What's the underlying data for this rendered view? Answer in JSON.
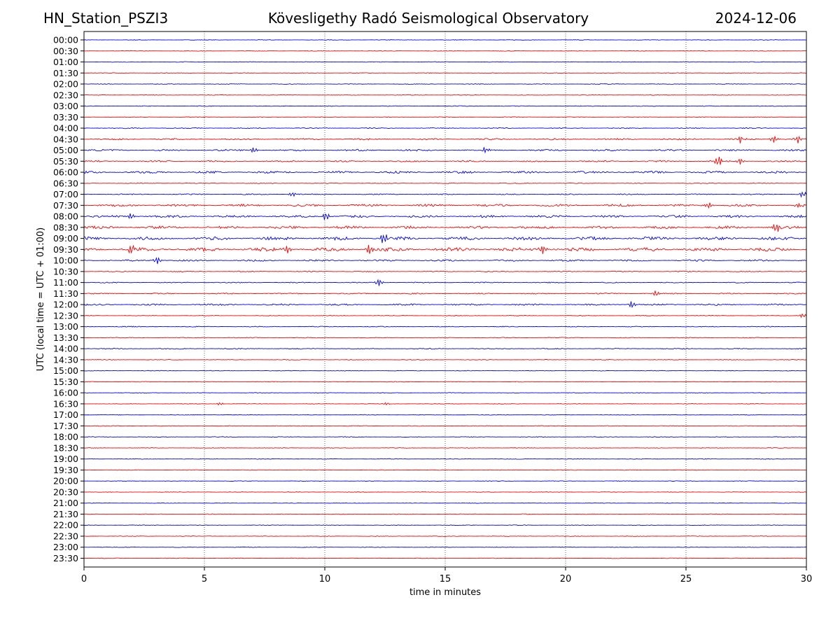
{
  "header": {
    "station": "HN_Station_PSZI3",
    "observatory": "Kövesligethy Radó Seismological Observatory",
    "date": "2024-12-06"
  },
  "chart_data": {
    "type": "line",
    "title": "Kövesligethy Radó Seismological Observatory",
    "xlabel": "time in minutes",
    "ylabel": "UTC (local time = UTC + 01:00)",
    "xlim": [
      0,
      30
    ],
    "x_ticks": [
      0,
      5,
      10,
      15,
      20,
      25,
      30
    ],
    "grid": "vertical dotted at every 5 minutes",
    "series_colors": [
      "#0000ff",
      "#ff0000"
    ],
    "rows": [
      {
        "label": "00:00",
        "activity": 0.02,
        "events": []
      },
      {
        "label": "00:30",
        "activity": 0.02,
        "events": []
      },
      {
        "label": "01:00",
        "activity": 0.02,
        "events": []
      },
      {
        "label": "01:30",
        "activity": 0.02,
        "events": []
      },
      {
        "label": "02:00",
        "activity": 0.03,
        "events": []
      },
      {
        "label": "02:30",
        "activity": 0.02,
        "events": []
      },
      {
        "label": "03:00",
        "activity": 0.03,
        "events": []
      },
      {
        "label": "03:30",
        "activity": 0.03,
        "events": []
      },
      {
        "label": "04:00",
        "activity": 0.08,
        "events": []
      },
      {
        "label": "04:30",
        "activity": 0.18,
        "events": [
          {
            "t": 27.2,
            "amp": 5
          },
          {
            "t": 28.6,
            "amp": 5
          },
          {
            "t": 29.6,
            "amp": 6
          }
        ]
      },
      {
        "label": "05:00",
        "activity": 0.2,
        "events": [
          {
            "t": 7.0,
            "amp": 4
          },
          {
            "t": 16.6,
            "amp": 4
          }
        ]
      },
      {
        "label": "05:30",
        "activity": 0.15,
        "events": [
          {
            "t": 26.3,
            "amp": 8
          },
          {
            "t": 27.2,
            "amp": 4
          }
        ]
      },
      {
        "label": "06:00",
        "activity": 0.28,
        "events": []
      },
      {
        "label": "06:30",
        "activity": 0.05,
        "events": []
      },
      {
        "label": "07:00",
        "activity": 0.1,
        "events": [
          {
            "t": 8.6,
            "amp": 3
          },
          {
            "t": 29.8,
            "amp": 4
          }
        ]
      },
      {
        "label": "07:30",
        "activity": 0.3,
        "events": [
          {
            "t": 25.9,
            "amp": 4
          },
          {
            "t": 29.6,
            "amp": 4
          }
        ]
      },
      {
        "label": "08:00",
        "activity": 0.3,
        "events": [
          {
            "t": 1.9,
            "amp": 4
          },
          {
            "t": 10.0,
            "amp": 6
          }
        ]
      },
      {
        "label": "08:30",
        "activity": 0.35,
        "events": [
          {
            "t": 28.7,
            "amp": 6
          }
        ]
      },
      {
        "label": "09:00",
        "activity": 0.45,
        "events": [
          {
            "t": 12.4,
            "amp": 8
          }
        ]
      },
      {
        "label": "09:30",
        "activity": 0.5,
        "events": [
          {
            "t": 1.9,
            "amp": 7
          },
          {
            "t": 8.4,
            "amp": 6
          },
          {
            "t": 11.8,
            "amp": 7
          },
          {
            "t": 19.0,
            "amp": 6
          }
        ]
      },
      {
        "label": "10:00",
        "activity": 0.2,
        "events": [
          {
            "t": 3.0,
            "amp": 5
          }
        ]
      },
      {
        "label": "10:30",
        "activity": 0.08,
        "events": []
      },
      {
        "label": "11:00",
        "activity": 0.08,
        "events": [
          {
            "t": 12.2,
            "amp": 5
          }
        ]
      },
      {
        "label": "11:30",
        "activity": 0.1,
        "events": [
          {
            "t": 23.7,
            "amp": 4
          }
        ]
      },
      {
        "label": "12:00",
        "activity": 0.2,
        "events": [
          {
            "t": 22.7,
            "amp": 5
          }
        ]
      },
      {
        "label": "12:30",
        "activity": 0.04,
        "events": [
          {
            "t": 29.8,
            "amp": 3
          }
        ]
      },
      {
        "label": "13:00",
        "activity": 0.06,
        "events": []
      },
      {
        "label": "13:30",
        "activity": 0.05,
        "events": []
      },
      {
        "label": "14:00",
        "activity": 0.08,
        "events": []
      },
      {
        "label": "14:30",
        "activity": 0.03,
        "events": []
      },
      {
        "label": "15:00",
        "activity": 0.02,
        "events": []
      },
      {
        "label": "15:30",
        "activity": 0.02,
        "events": []
      },
      {
        "label": "16:00",
        "activity": 0.02,
        "events": []
      },
      {
        "label": "16:30",
        "activity": 0.02,
        "events": [
          {
            "t": 5.6,
            "amp": 2
          },
          {
            "t": 12.5,
            "amp": 2
          }
        ]
      },
      {
        "label": "17:00",
        "activity": 0.02,
        "events": []
      },
      {
        "label": "17:30",
        "activity": 0.02,
        "events": []
      },
      {
        "label": "18:00",
        "activity": 0.02,
        "events": []
      },
      {
        "label": "18:30",
        "activity": 0.02,
        "events": []
      },
      {
        "label": "19:00",
        "activity": 0.02,
        "events": []
      },
      {
        "label": "19:30",
        "activity": 0.02,
        "events": []
      },
      {
        "label": "20:00",
        "activity": 0.02,
        "events": []
      },
      {
        "label": "20:30",
        "activity": 0.02,
        "events": []
      },
      {
        "label": "21:00",
        "activity": 0.02,
        "events": []
      },
      {
        "label": "21:30",
        "activity": 0.02,
        "events": []
      },
      {
        "label": "22:00",
        "activity": 0.02,
        "events": []
      },
      {
        "label": "22:30",
        "activity": 0.02,
        "events": []
      },
      {
        "label": "23:00",
        "activity": 0.02,
        "events": []
      },
      {
        "label": "23:30",
        "activity": 0.02,
        "events": []
      }
    ]
  }
}
